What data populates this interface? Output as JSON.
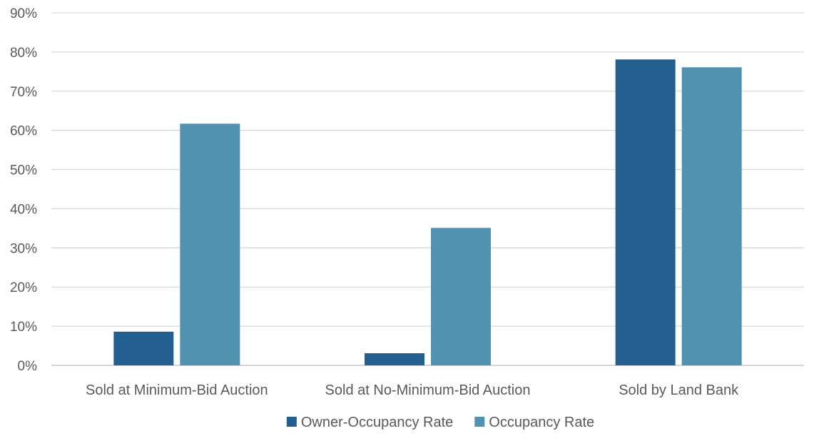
{
  "chart_data": {
    "type": "bar",
    "categories": [
      "Sold at Minimum-Bid Auction",
      "Sold at No-Minimum-Bid Auction",
      "Sold by Land Bank"
    ],
    "series": [
      {
        "name": "Owner-Occupancy Rate",
        "values": [
          8.6,
          3.1,
          78.1
        ],
        "color": "#235e91"
      },
      {
        "name": "Occupancy Rate",
        "values": [
          61.7,
          35.1,
          76.1
        ],
        "color": "#5191b2"
      }
    ],
    "ylim": [
      0,
      90
    ],
    "y_ticks": [
      0,
      10,
      20,
      30,
      40,
      50,
      60,
      70,
      80,
      90
    ],
    "y_tick_format": "{v}%",
    "grid": true,
    "legend": "bottom-center",
    "title": "",
    "xlabel": "",
    "ylabel": ""
  }
}
